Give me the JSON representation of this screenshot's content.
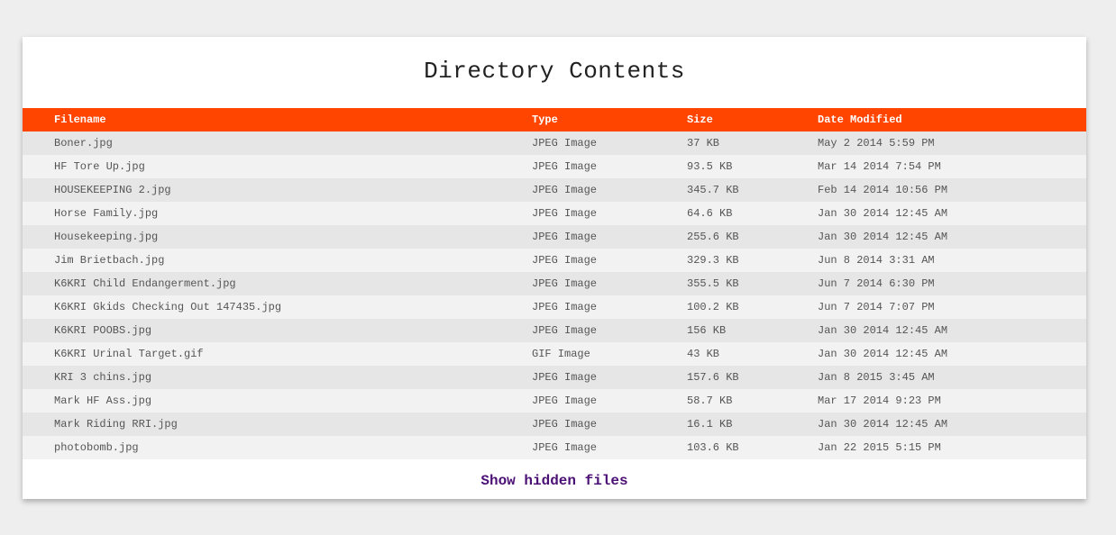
{
  "title": "Directory Contents",
  "columns": {
    "filename": "Filename",
    "type": "Type",
    "size": "Size",
    "modified": "Date Modified"
  },
  "files": [
    {
      "name": "Boner.jpg",
      "type": "JPEG Image",
      "size": "37 KB",
      "modified": "May 2 2014 5:59 PM"
    },
    {
      "name": "HF Tore Up.jpg",
      "type": "JPEG Image",
      "size": "93.5 KB",
      "modified": "Mar 14 2014 7:54 PM"
    },
    {
      "name": "HOUSEKEEPING 2.jpg",
      "type": "JPEG Image",
      "size": "345.7 KB",
      "modified": "Feb 14 2014 10:56 PM"
    },
    {
      "name": "Horse Family.jpg",
      "type": "JPEG Image",
      "size": "64.6 KB",
      "modified": "Jan 30 2014 12:45 AM"
    },
    {
      "name": "Housekeeping.jpg",
      "type": "JPEG Image",
      "size": "255.6 KB",
      "modified": "Jan 30 2014 12:45 AM"
    },
    {
      "name": "Jim Brietbach.jpg",
      "type": "JPEG Image",
      "size": "329.3 KB",
      "modified": "Jun 8 2014 3:31 AM"
    },
    {
      "name": "K6KRI Child Endangerment.jpg",
      "type": "JPEG Image",
      "size": "355.5 KB",
      "modified": "Jun 7 2014 6:30 PM"
    },
    {
      "name": "K6KRI Gkids Checking Out 147435.jpg",
      "type": "JPEG Image",
      "size": "100.2 KB",
      "modified": "Jun 7 2014 7:07 PM"
    },
    {
      "name": "K6KRI POOBS.jpg",
      "type": "JPEG Image",
      "size": "156 KB",
      "modified": "Jan 30 2014 12:45 AM"
    },
    {
      "name": "K6KRI Urinal Target.gif",
      "type": "GIF Image",
      "size": "43 KB",
      "modified": "Jan 30 2014 12:45 AM"
    },
    {
      "name": "KRI 3 chins.jpg",
      "type": "JPEG Image",
      "size": "157.6 KB",
      "modified": "Jan 8 2015 3:45 AM"
    },
    {
      "name": "Mark HF Ass.jpg",
      "type": "JPEG Image",
      "size": "58.7 KB",
      "modified": "Mar 17 2014 9:23 PM"
    },
    {
      "name": "Mark Riding RRI.jpg",
      "type": "JPEG Image",
      "size": "16.1 KB",
      "modified": "Jan 30 2014 12:45 AM"
    },
    {
      "name": "photobomb.jpg",
      "type": "JPEG Image",
      "size": "103.6 KB",
      "modified": "Jan 22 2015 5:15 PM"
    }
  ],
  "footer": {
    "show_hidden_label": "Show hidden files"
  },
  "colors": {
    "header_bg": "#ff4500",
    "row_odd": "#e6e6e6",
    "row_even": "#f2f2f2",
    "link": "#4b1075",
    "page_bg": "#eeeeee"
  }
}
